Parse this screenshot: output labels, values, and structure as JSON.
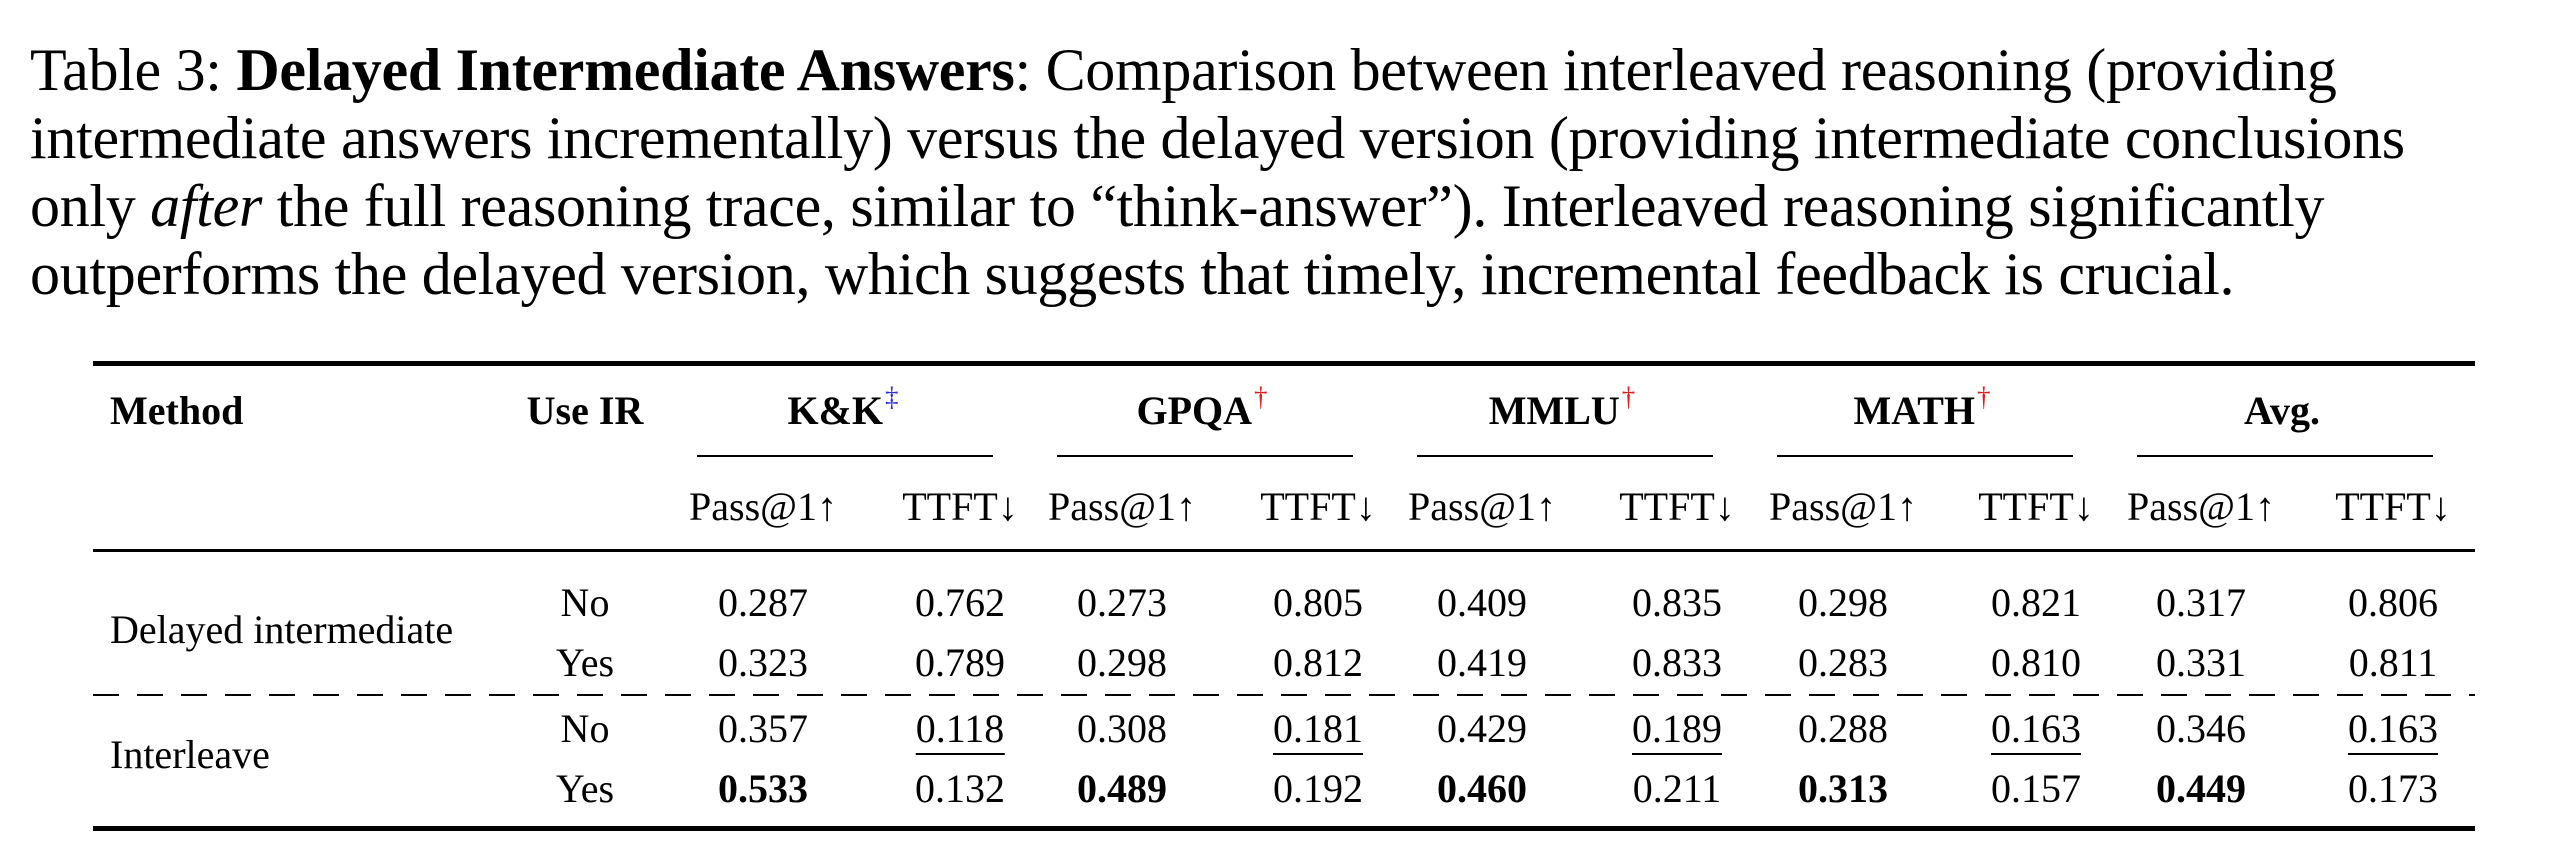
{
  "caption": {
    "label": "Table 3: ",
    "title": "Delayed Intermediate Answers",
    "line1_rest": ": Comparison between interleaved reasoning (providing",
    "line2": "intermediate answers incrementally) versus the delayed version (providing intermediate conclusions",
    "line3_pre": "only ",
    "line3_italic": "after",
    "line3_post": " the full reasoning trace, similar to “think-answer”). Interleaved reasoning significantly",
    "line4": "outperforms the delayed version, which suggests that timely, incremental feedback is crucial."
  },
  "table": {
    "headers": {
      "method": "Method",
      "use_ir": "Use IR",
      "groups": [
        {
          "name": "K&K",
          "mark": "‡",
          "mark_color": "#2a2adf"
        },
        {
          "name": "GPQA",
          "mark": "†",
          "mark_color": "#e01b1b"
        },
        {
          "name": "MMLU",
          "mark": "†",
          "mark_color": "#e01b1b"
        },
        {
          "name": "MATH",
          "mark": "†",
          "mark_color": "#e01b1b"
        },
        {
          "name": "Avg.",
          "mark": "",
          "mark_color": ""
        }
      ],
      "sub": [
        "Pass@1↑",
        "TTFT↓"
      ]
    },
    "methods": [
      "Delayed intermediate",
      "Interleave"
    ],
    "rows": [
      {
        "use_ir": "No",
        "values": [
          "0.287",
          "0.762",
          "0.273",
          "0.805",
          "0.409",
          "0.835",
          "0.298",
          "0.821",
          "0.317",
          "0.806"
        ]
      },
      {
        "use_ir": "Yes",
        "values": [
          "0.323",
          "0.789",
          "0.298",
          "0.812",
          "0.419",
          "0.833",
          "0.283",
          "0.810",
          "0.331",
          "0.811"
        ]
      },
      {
        "use_ir": "No",
        "values": [
          "0.357",
          "0.118",
          "0.308",
          "0.181",
          "0.429",
          "0.189",
          "0.288",
          "0.163",
          "0.346",
          "0.163"
        ]
      },
      {
        "use_ir": "Yes",
        "values": [
          "0.533",
          "0.132",
          "0.489",
          "0.192",
          "0.460",
          "0.211",
          "0.313",
          "0.157",
          "0.449",
          "0.173"
        ]
      }
    ],
    "bold_cells": [
      [
        3,
        0
      ],
      [
        3,
        2
      ],
      [
        3,
        4
      ],
      [
        3,
        6
      ],
      [
        3,
        8
      ]
    ],
    "underlined_cells": [
      [
        2,
        1
      ],
      [
        2,
        3
      ],
      [
        2,
        5
      ],
      [
        2,
        7
      ],
      [
        2,
        9
      ]
    ]
  }
}
